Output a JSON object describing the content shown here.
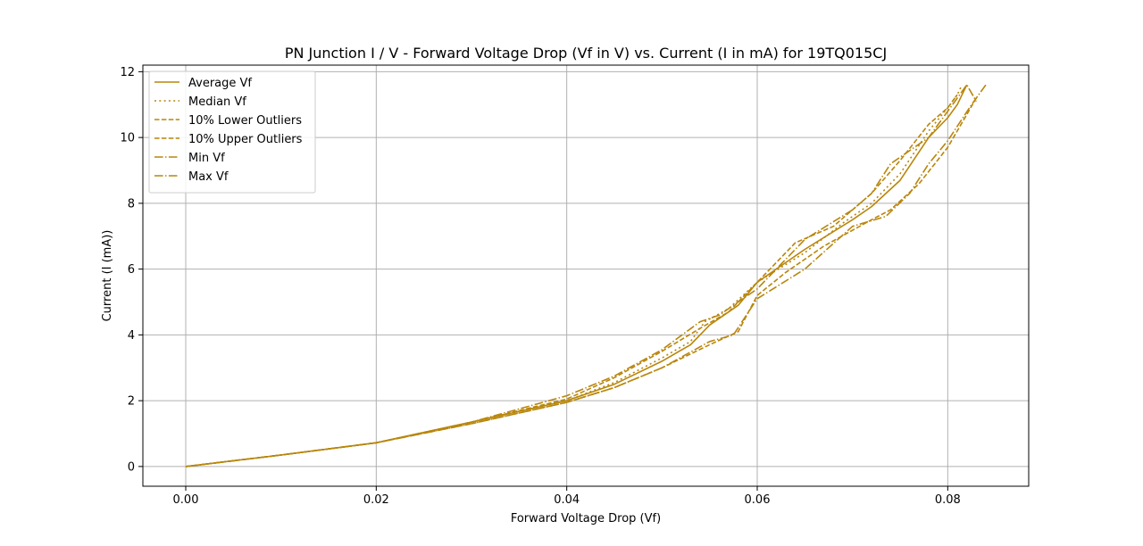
{
  "chart_data": {
    "type": "line",
    "title": "PN Junction I / V - Forward Voltage Drop (Vf in V) vs. Current (I in mA) for 19TQ015CJ",
    "xlabel": "Forward Voltage Drop (Vf)",
    "ylabel": "Current (I (mA))",
    "xlim": [
      -0.0045,
      0.0885
    ],
    "ylim": [
      -0.6,
      12.2
    ],
    "xticks": [
      0.0,
      0.02,
      0.04,
      0.06,
      0.08
    ],
    "xtick_labels": [
      "0.00",
      "0.02",
      "0.04",
      "0.06",
      "0.08"
    ],
    "yticks": [
      0,
      2,
      4,
      6,
      8,
      10,
      12
    ],
    "ytick_labels": [
      "0",
      "2",
      "4",
      "6",
      "8",
      "10",
      "12"
    ],
    "grid": true,
    "legend_position": "top-left",
    "colors": {
      "line": "#b8860b",
      "grid": "#b0b0b0",
      "axes": "#000000"
    },
    "series": [
      {
        "name": "Average Vf",
        "dash": "solid",
        "x": [
          0.0,
          0.01,
          0.02,
          0.03,
          0.04,
          0.045,
          0.05,
          0.053,
          0.055,
          0.058,
          0.06,
          0.065,
          0.07,
          0.072,
          0.075,
          0.078,
          0.08,
          0.081,
          0.082
        ],
        "y": [
          0,
          0.35,
          0.72,
          1.35,
          2.0,
          2.5,
          3.2,
          3.7,
          4.3,
          4.9,
          5.6,
          6.6,
          7.5,
          7.9,
          8.7,
          10.0,
          10.6,
          11.0,
          11.6
        ]
      },
      {
        "name": "Median Vf",
        "dash": "dotted",
        "x": [
          0.0,
          0.01,
          0.02,
          0.03,
          0.04,
          0.045,
          0.05,
          0.053,
          0.0545,
          0.057,
          0.06,
          0.065,
          0.069,
          0.072,
          0.075,
          0.078,
          0.08,
          0.081,
          0.0815
        ],
        "y": [
          0,
          0.35,
          0.72,
          1.35,
          2.0,
          2.55,
          3.3,
          3.8,
          4.4,
          4.8,
          5.6,
          6.5,
          7.4,
          8.0,
          8.9,
          10.2,
          10.9,
          11.3,
          11.6
        ]
      },
      {
        "name": "10% Lower Outliers",
        "dash": "dashed",
        "x": [
          0.0,
          0.01,
          0.02,
          0.03,
          0.04,
          0.045,
          0.05,
          0.055,
          0.058,
          0.06,
          0.063,
          0.067,
          0.072,
          0.074,
          0.077,
          0.08,
          0.082,
          0.083
        ],
        "y": [
          0,
          0.35,
          0.72,
          1.3,
          1.95,
          2.4,
          3.0,
          3.7,
          4.1,
          5.2,
          5.9,
          6.7,
          7.5,
          7.8,
          8.6,
          9.7,
          10.7,
          11.2
        ]
      },
      {
        "name": "10% Upper Outliers",
        "dash": "dashed",
        "x": [
          0.0,
          0.01,
          0.02,
          0.03,
          0.04,
          0.045,
          0.05,
          0.054,
          0.057,
          0.06,
          0.064,
          0.068,
          0.072,
          0.075,
          0.078,
          0.08,
          0.081
        ],
        "y": [
          0,
          0.35,
          0.72,
          1.35,
          2.05,
          2.7,
          3.5,
          4.2,
          4.7,
          5.6,
          6.8,
          7.3,
          8.3,
          9.3,
          10.4,
          10.9,
          11.3
        ]
      },
      {
        "name": "Min Vf",
        "dash": "dashdot",
        "x": [
          0.0,
          0.01,
          0.02,
          0.03,
          0.04,
          0.045,
          0.05,
          0.055,
          0.0575,
          0.06,
          0.065,
          0.07,
          0.0735,
          0.076,
          0.078,
          0.08,
          0.0825,
          0.084
        ],
        "y": [
          0,
          0.35,
          0.72,
          1.3,
          1.95,
          2.4,
          3.0,
          3.8,
          4.0,
          5.1,
          6.0,
          7.3,
          7.6,
          8.3,
          9.2,
          9.9,
          11.0,
          11.6
        ]
      },
      {
        "name": "Max Vf",
        "dash": "dashdot",
        "x": [
          0.0,
          0.01,
          0.02,
          0.03,
          0.04,
          0.045,
          0.05,
          0.054,
          0.056,
          0.06,
          0.065,
          0.07,
          0.072,
          0.074,
          0.078,
          0.0805,
          0.082,
          0.083
        ],
        "y": [
          0,
          0.35,
          0.72,
          1.35,
          2.15,
          2.75,
          3.55,
          4.4,
          4.6,
          5.4,
          6.9,
          7.8,
          8.3,
          9.2,
          10.0,
          11.0,
          11.6,
          11.1
        ]
      }
    ]
  }
}
